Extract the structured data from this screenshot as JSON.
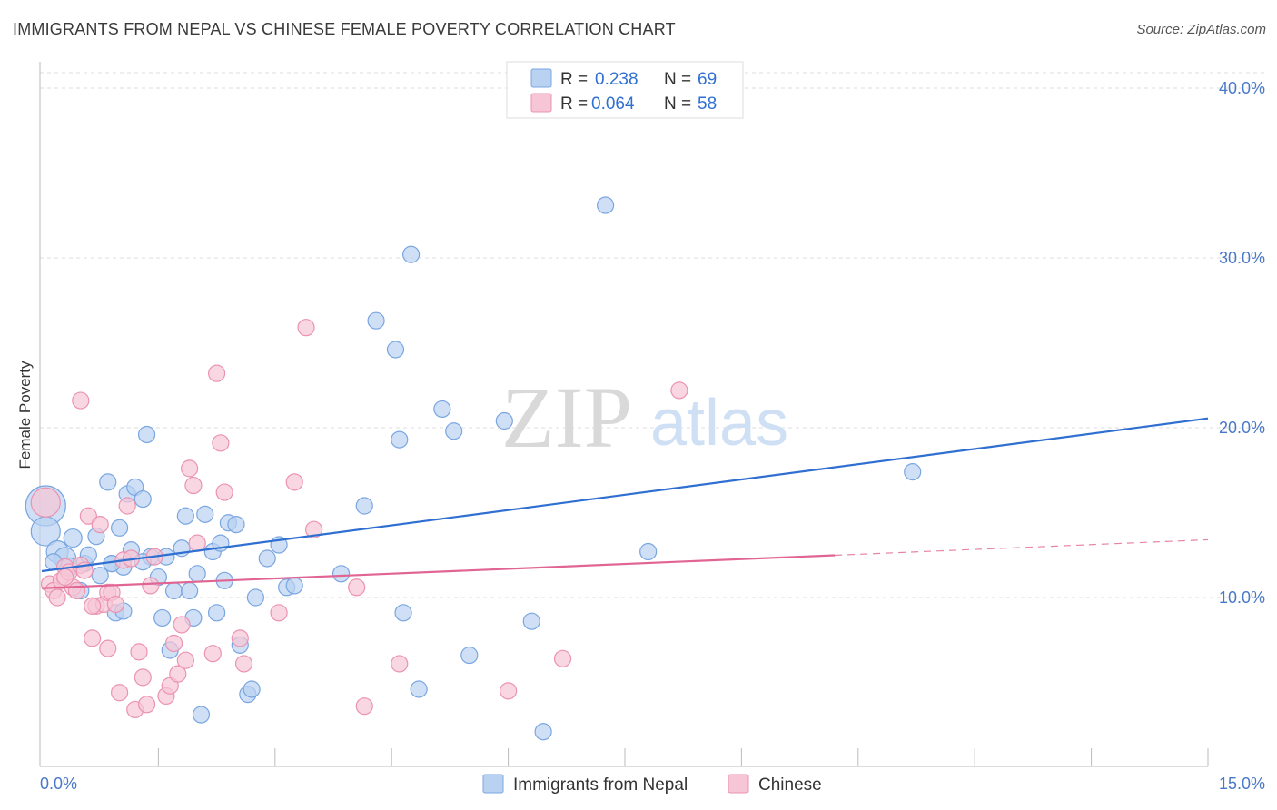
{
  "header": {
    "title": "IMMIGRANTS FROM NEPAL VS CHINESE FEMALE POVERTY CORRELATION CHART",
    "source": "Source: ZipAtlas.com"
  },
  "watermark": {
    "zip": "ZIP",
    "atlas": "atlas"
  },
  "colors": {
    "blue_fill": "#b9d2f2",
    "blue_stroke": "#7aa6e0",
    "blue_line": "#2f6fd1",
    "pink_fill": "#f6c6d6",
    "pink_stroke": "#eb93b0",
    "pink_line": "#e06592",
    "grid": "#dddddd",
    "tick_text": "#4a78c8"
  },
  "legend_top": {
    "rows": [
      {
        "r_label": "R =",
        "r_value": "0.238",
        "n_label": "N =",
        "n_value": "69",
        "series": "nepal"
      },
      {
        "r_label": "R =",
        "r_value": "0.064",
        "n_label": "N =",
        "n_value": "58",
        "series": "chinese"
      }
    ]
  },
  "legend_bottom": [
    {
      "label": "Immigrants from Nepal",
      "series": "nepal"
    },
    {
      "label": "Chinese",
      "series": "chinese"
    }
  ],
  "chart_data": {
    "type": "scatter",
    "title": "IMMIGRANTS FROM NEPAL VS CHINESE FEMALE POVERTY CORRELATION CHART",
    "xlabel": "",
    "ylabel": "Female Poverty",
    "xlim": [
      0,
      15
    ],
    "ylim": [
      0,
      40
    ],
    "x_tick_labels": [
      "0.0%",
      "15.0%"
    ],
    "y_ticks": [
      10,
      20,
      30,
      40
    ],
    "y_tick_labels": [
      "10.0%",
      "20.0%",
      "30.0%",
      "40.0%"
    ],
    "grid": true,
    "series": [
      {
        "name": "Immigrants from Nepal",
        "key": "nepal",
        "r": 0.238,
        "n": 69,
        "trend": {
          "x0": 0,
          "y0": 11.55,
          "x1": 15,
          "y1": 20.55,
          "dashed_from": null
        },
        "points": [
          [
            0.05,
            15.4,
            22
          ],
          [
            0.05,
            13.9,
            16
          ],
          [
            0.2,
            12.7,
            12
          ],
          [
            0.3,
            12.3,
            12
          ],
          [
            0.35,
            11.8,
            10
          ],
          [
            0.4,
            13.5,
            10
          ],
          [
            0.5,
            10.4,
            9
          ],
          [
            0.55,
            12.0,
            9
          ],
          [
            0.6,
            12.5,
            9
          ],
          [
            0.7,
            13.6,
            9
          ],
          [
            0.75,
            11.3,
            9
          ],
          [
            0.85,
            16.8,
            9
          ],
          [
            0.9,
            12.0,
            9
          ],
          [
            0.95,
            9.1,
            9
          ],
          [
            1.0,
            14.1,
            9
          ],
          [
            1.05,
            11.8,
            9
          ],
          [
            1.1,
            16.1,
            9
          ],
          [
            1.15,
            12.8,
            9
          ],
          [
            1.2,
            16.5,
            9
          ],
          [
            1.3,
            15.8,
            9
          ],
          [
            1.35,
            19.6,
            9
          ],
          [
            1.4,
            12.4,
            9
          ],
          [
            1.5,
            11.2,
            9
          ],
          [
            1.55,
            8.8,
            9
          ],
          [
            1.6,
            12.4,
            9
          ],
          [
            1.65,
            6.9,
            9
          ],
          [
            1.7,
            10.4,
            9
          ],
          [
            1.8,
            12.9,
            9
          ],
          [
            1.85,
            14.8,
            9
          ],
          [
            1.9,
            10.4,
            9
          ],
          [
            1.95,
            8.8,
            9
          ],
          [
            2.0,
            11.4,
            9
          ],
          [
            2.1,
            14.9,
            9
          ],
          [
            2.2,
            12.7,
            9
          ],
          [
            2.25,
            9.1,
            9
          ],
          [
            2.3,
            13.2,
            9
          ],
          [
            2.35,
            11.0,
            9
          ],
          [
            2.4,
            14.4,
            9
          ],
          [
            2.5,
            14.3,
            9
          ],
          [
            2.55,
            7.2,
            9
          ],
          [
            2.65,
            4.3,
            9
          ],
          [
            2.7,
            4.6,
            9
          ],
          [
            2.75,
            10.0,
            9
          ],
          [
            2.9,
            12.3,
            9
          ],
          [
            3.05,
            13.1,
            9
          ],
          [
            3.15,
            10.6,
            9
          ],
          [
            3.25,
            10.7,
            9
          ],
          [
            2.05,
            3.1,
            9
          ],
          [
            3.85,
            11.4,
            9
          ],
          [
            4.15,
            15.4,
            9
          ],
          [
            4.3,
            26.3,
            9
          ],
          [
            4.55,
            24.6,
            9
          ],
          [
            4.6,
            19.3,
            9
          ],
          [
            4.65,
            9.1,
            9
          ],
          [
            4.75,
            30.2,
            9
          ],
          [
            4.85,
            4.6,
            9
          ],
          [
            5.15,
            21.1,
            9
          ],
          [
            5.3,
            19.8,
            9
          ],
          [
            5.5,
            6.6,
            9
          ],
          [
            5.95,
            20.4,
            9
          ],
          [
            6.3,
            8.6,
            9
          ],
          [
            6.45,
            2.1,
            9
          ],
          [
            7.25,
            33.1,
            9
          ],
          [
            7.8,
            12.7,
            9
          ],
          [
            11.2,
            17.4,
            9
          ],
          [
            1.05,
            9.2,
            9
          ],
          [
            0.15,
            12.1,
            9
          ],
          [
            1.3,
            12.1,
            9
          ],
          [
            0.9,
            12.0,
            9
          ]
        ]
      },
      {
        "name": "Chinese",
        "key": "chinese",
        "r": 0.064,
        "n": 58,
        "trend": {
          "x0": 0,
          "y0": 10.55,
          "x1": 15,
          "y1": 13.4,
          "dashed_from": 10.2
        },
        "points": [
          [
            0.05,
            15.6,
            16
          ],
          [
            0.1,
            10.8,
            9
          ],
          [
            0.15,
            10.4,
            9
          ],
          [
            0.2,
            10.0,
            9
          ],
          [
            0.25,
            11.0,
            9
          ],
          [
            0.3,
            11.8,
            9
          ],
          [
            0.35,
            11.5,
            9
          ],
          [
            0.4,
            10.6,
            9
          ],
          [
            0.5,
            11.9,
            9
          ],
          [
            0.55,
            11.6,
            9
          ],
          [
            0.5,
            21.6,
            9
          ],
          [
            0.6,
            14.8,
            9
          ],
          [
            0.65,
            7.6,
            9
          ],
          [
            0.7,
            9.5,
            9
          ],
          [
            0.75,
            14.3,
            9
          ],
          [
            0.8,
            9.6,
            9
          ],
          [
            0.85,
            10.3,
            9
          ],
          [
            0.85,
            7.0,
            9
          ],
          [
            0.9,
            10.3,
            9
          ],
          [
            0.95,
            9.6,
            9
          ],
          [
            1.0,
            4.4,
            9
          ],
          [
            1.05,
            12.2,
            9
          ],
          [
            1.1,
            15.4,
            9
          ],
          [
            1.15,
            12.3,
            9
          ],
          [
            1.2,
            3.4,
            9
          ],
          [
            1.25,
            6.8,
            9
          ],
          [
            1.3,
            5.3,
            9
          ],
          [
            1.35,
            3.7,
            9
          ],
          [
            1.4,
            10.7,
            9
          ],
          [
            1.45,
            12.4,
            9
          ],
          [
            1.6,
            4.2,
            9
          ],
          [
            1.65,
            4.8,
            9
          ],
          [
            1.7,
            7.3,
            9
          ],
          [
            1.75,
            5.5,
            9
          ],
          [
            1.8,
            8.4,
            9
          ],
          [
            1.85,
            6.3,
            9
          ],
          [
            1.9,
            17.6,
            9
          ],
          [
            1.95,
            16.6,
            9
          ],
          [
            2.0,
            13.2,
            9
          ],
          [
            2.2,
            6.7,
            9
          ],
          [
            2.25,
            23.2,
            9
          ],
          [
            2.3,
            19.1,
            9
          ],
          [
            2.35,
            16.2,
            9
          ],
          [
            2.55,
            7.6,
            9
          ],
          [
            2.6,
            6.1,
            9
          ],
          [
            3.05,
            9.1,
            9
          ],
          [
            3.25,
            16.8,
            9
          ],
          [
            3.4,
            25.9,
            9
          ],
          [
            3.5,
            14.0,
            9
          ],
          [
            4.05,
            10.6,
            9
          ],
          [
            4.15,
            3.6,
            9
          ],
          [
            4.6,
            6.1,
            9
          ],
          [
            6.0,
            4.5,
            9
          ],
          [
            6.7,
            6.4,
            9
          ],
          [
            8.2,
            22.2,
            9
          ],
          [
            0.3,
            11.2,
            9
          ],
          [
            0.45,
            10.4,
            9
          ],
          [
            0.65,
            9.5,
            9
          ]
        ]
      }
    ]
  }
}
